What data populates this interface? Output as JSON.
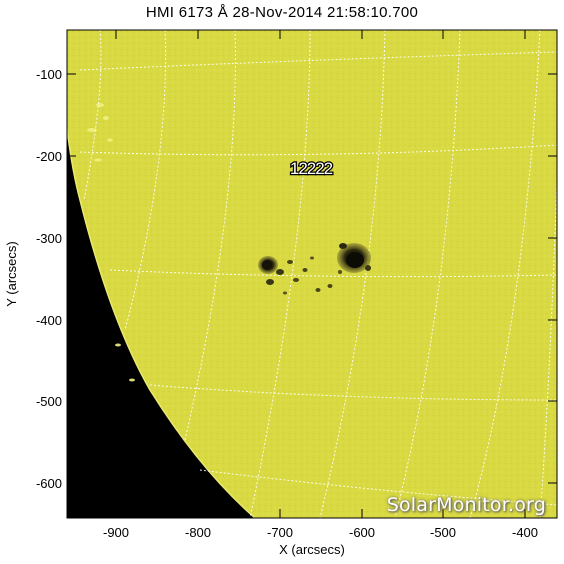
{
  "title": "HMI 6173 Å 28-Nov-2014 21:58:10.700",
  "xlabel": "X (arcsecs)",
  "ylabel": "Y (arcsecs)",
  "x_ticks": [
    "-900",
    "-800",
    "-700",
    "-600",
    "-500",
    "-400"
  ],
  "y_ticks": [
    "-100",
    "-200",
    "-300",
    "-400",
    "-500",
    "-600"
  ],
  "region_label": "12222",
  "watermark": "SolarMonitor.org",
  "colors": {
    "disk": "#d9d943",
    "space": "#000000",
    "grid": "#ffffff",
    "spot": "#1f1c0c"
  }
}
